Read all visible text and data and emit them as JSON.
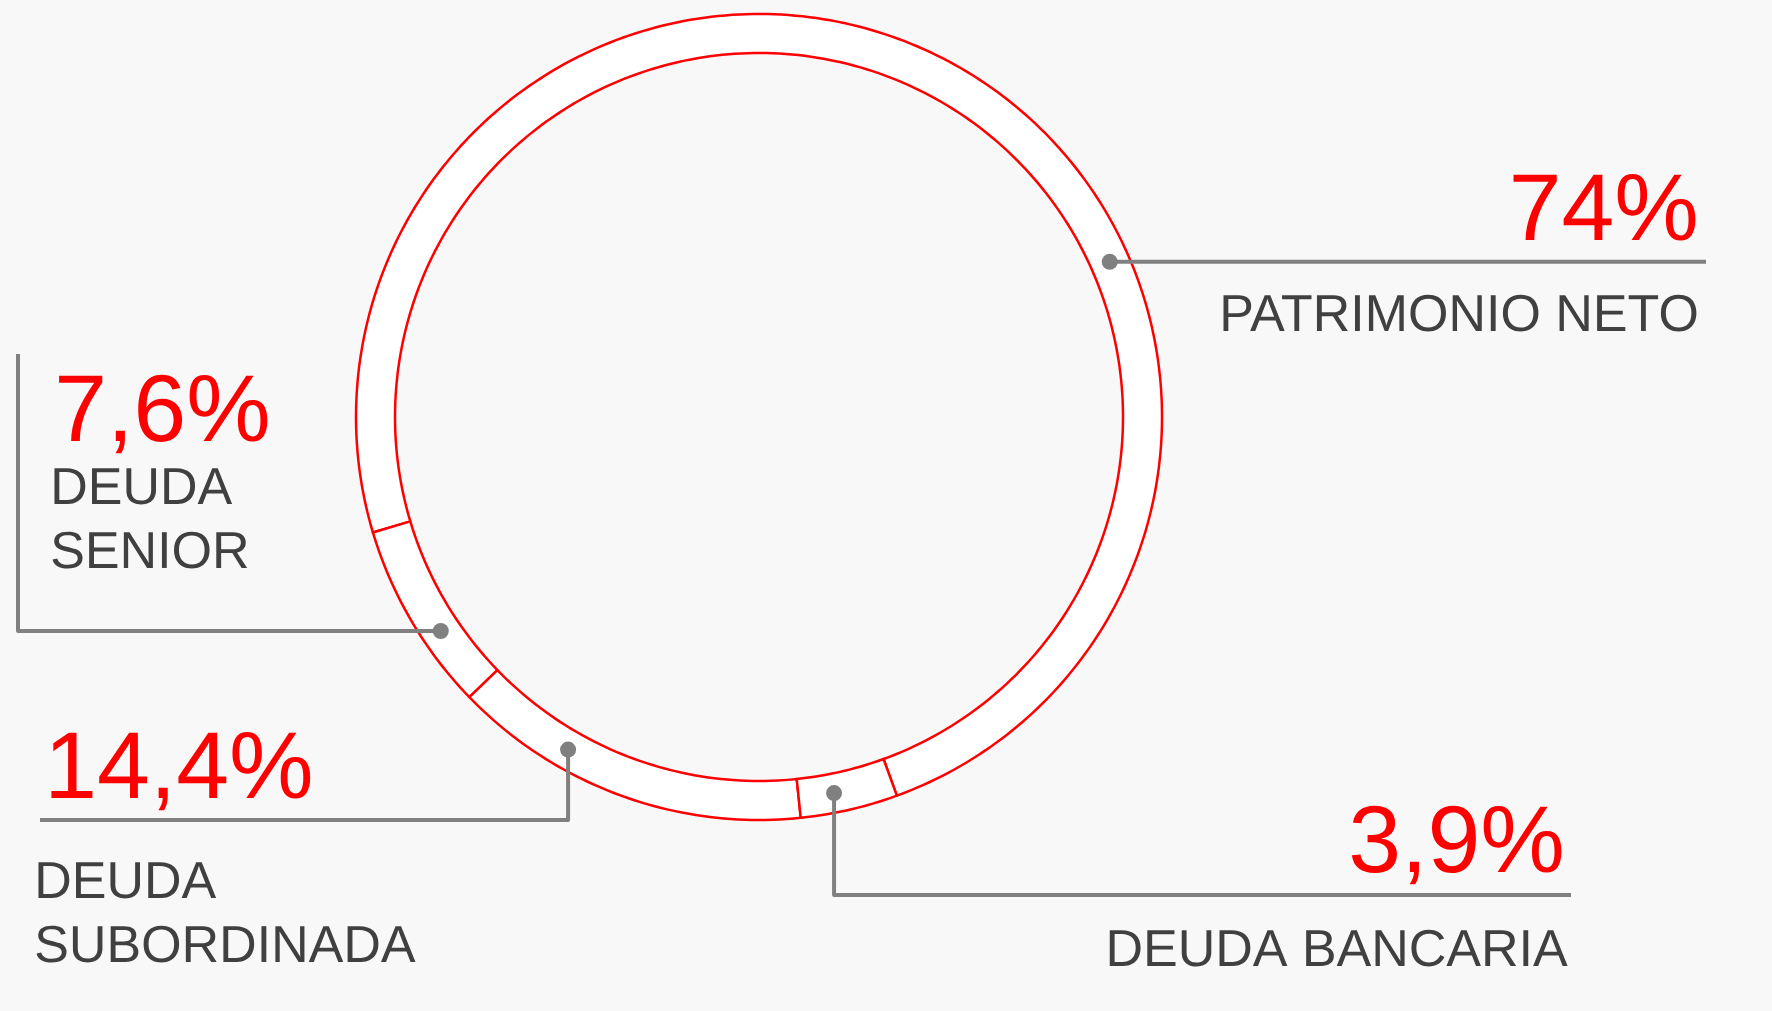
{
  "chart_data": {
    "type": "donut",
    "categories": [
      "PATRIMONIO NETO",
      "DEUDA SENIOR",
      "DEUDA SUBORDINADA",
      "DEUDA BANCARIA"
    ],
    "values": [
      74,
      7.6,
      14.4,
      3.9
    ],
    "colors": [
      "#ffffff",
      "#ffffff",
      "#ffffff",
      "#ffffff"
    ],
    "value_labels": [
      "74%",
      "7,6%",
      "14,4%",
      "3,9%"
    ]
  }
}
